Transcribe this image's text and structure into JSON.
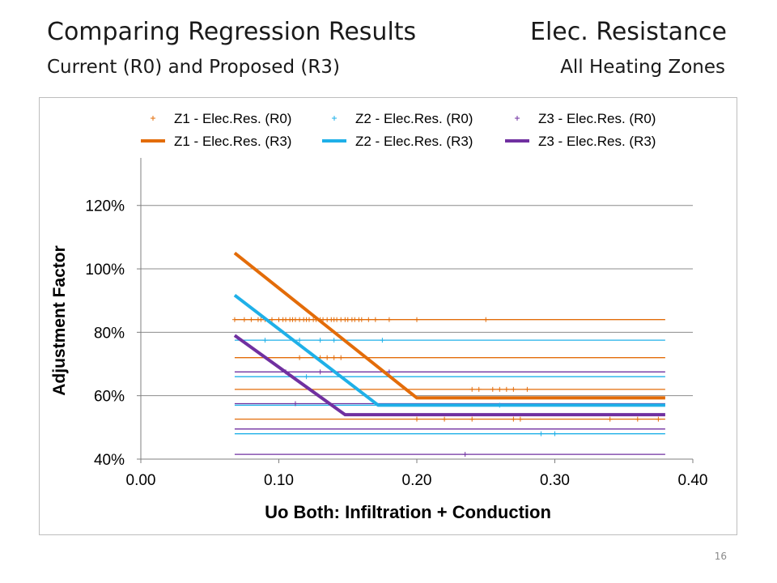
{
  "slide": {
    "title_left": "Comparing Regression Results",
    "title_right": "Elec. Resistance",
    "subtitle_left": "Current (R0) and Proposed (R3)",
    "subtitle_right": "All Heating Zones",
    "page_number": "16"
  },
  "chart_data": {
    "type": "scatter",
    "xlabel": "Uo Both:  Infiltration + Conduction",
    "ylabel": "Adjustment Factor",
    "xlim": [
      0.0,
      0.4
    ],
    "ylim": [
      0.4,
      1.35
    ],
    "x_ticks": [
      "0.00",
      "0.10",
      "0.20",
      "0.30",
      "0.40"
    ],
    "y_ticks": [
      "40%",
      "60%",
      "80%",
      "100%",
      "120%"
    ],
    "grid": "horizontal",
    "legend_position": "top",
    "colors": {
      "z1": "#E36C09",
      "z2": "#1FB0E8",
      "z3": "#7030A0"
    },
    "series": [
      {
        "name": "Z1 - Elec.Res. (R0)",
        "kind": "markers",
        "color": "#E36C09",
        "levels": [
          {
            "y": 0.84,
            "x": [
              0.068,
              0.075,
              0.08,
              0.085,
              0.087,
              0.09,
              0.095,
              0.1,
              0.103,
              0.105,
              0.108,
              0.11,
              0.112,
              0.115,
              0.118,
              0.12,
              0.122,
              0.125,
              0.127,
              0.13,
              0.132,
              0.135,
              0.138,
              0.14,
              0.142,
              0.145,
              0.148,
              0.15,
              0.153,
              0.155,
              0.158,
              0.16,
              0.165,
              0.17,
              0.18,
              0.2,
              0.25
            ]
          },
          {
            "y": 0.72,
            "x": [
              0.115,
              0.13,
              0.135,
              0.14,
              0.145
            ]
          },
          {
            "y": 0.62,
            "x": [
              0.24,
              0.245,
              0.255,
              0.26,
              0.265,
              0.27,
              0.28
            ]
          },
          {
            "y": 0.526,
            "x": [
              0.2,
              0.22,
              0.24,
              0.27,
              0.275,
              0.34,
              0.36,
              0.375
            ]
          }
        ]
      },
      {
        "name": "Z2 - Elec.Res. (R0)",
        "kind": "markers",
        "color": "#1FB0E8",
        "levels": [
          {
            "y": 0.775,
            "x": [
              0.09,
              0.115,
              0.13,
              0.14,
              0.175
            ]
          },
          {
            "y": 0.66,
            "x": [
              0.12
            ]
          },
          {
            "y": 0.57,
            "x": [
              0.26
            ]
          },
          {
            "y": 0.48,
            "x": [
              0.29,
              0.3
            ]
          }
        ]
      },
      {
        "name": "Z3 - Elec.Res. (R0)",
        "kind": "markers",
        "color": "#7030A0",
        "levels": [
          {
            "y": 0.675,
            "x": [
              0.105,
              0.13,
              0.18
            ]
          },
          {
            "y": 0.575,
            "x": [
              0.112
            ]
          },
          {
            "y": 0.415,
            "x": [
              0.235
            ]
          }
        ]
      },
      {
        "name": "Z1 - Elec.Res. (R3)",
        "kind": "line",
        "color": "#E36C09",
        "x": [
          0.068,
          0.2,
          0.38
        ],
        "y": [
          1.05,
          0.593,
          0.593
        ]
      },
      {
        "name": "Z2 - Elec.Res. (R3)",
        "kind": "line",
        "color": "#1FB0E8",
        "x": [
          0.068,
          0.172,
          0.38
        ],
        "y": [
          0.917,
          0.57,
          0.57
        ]
      },
      {
        "name": "Z3 - Elec.Res. (R3)",
        "kind": "line",
        "color": "#7030A0",
        "x": [
          0.068,
          0.148,
          0.38
        ],
        "y": [
          0.79,
          0.54,
          0.54
        ]
      }
    ],
    "reference_lines": [
      {
        "y": 0.84,
        "color": "#E36C09"
      },
      {
        "y": 0.775,
        "color": "#1FB0E8"
      },
      {
        "y": 0.72,
        "color": "#E36C09"
      },
      {
        "y": 0.675,
        "color": "#7030A0"
      },
      {
        "y": 0.66,
        "color": "#1FB0E8"
      },
      {
        "y": 0.62,
        "color": "#E36C09"
      },
      {
        "y": 0.575,
        "color": "#7030A0"
      },
      {
        "y": 0.57,
        "color": "#1FB0E8"
      },
      {
        "y": 0.526,
        "color": "#E36C09"
      },
      {
        "y": 0.495,
        "color": "#7030A0"
      },
      {
        "y": 0.48,
        "color": "#1FB0E8"
      },
      {
        "y": 0.415,
        "color": "#7030A0"
      }
    ]
  }
}
